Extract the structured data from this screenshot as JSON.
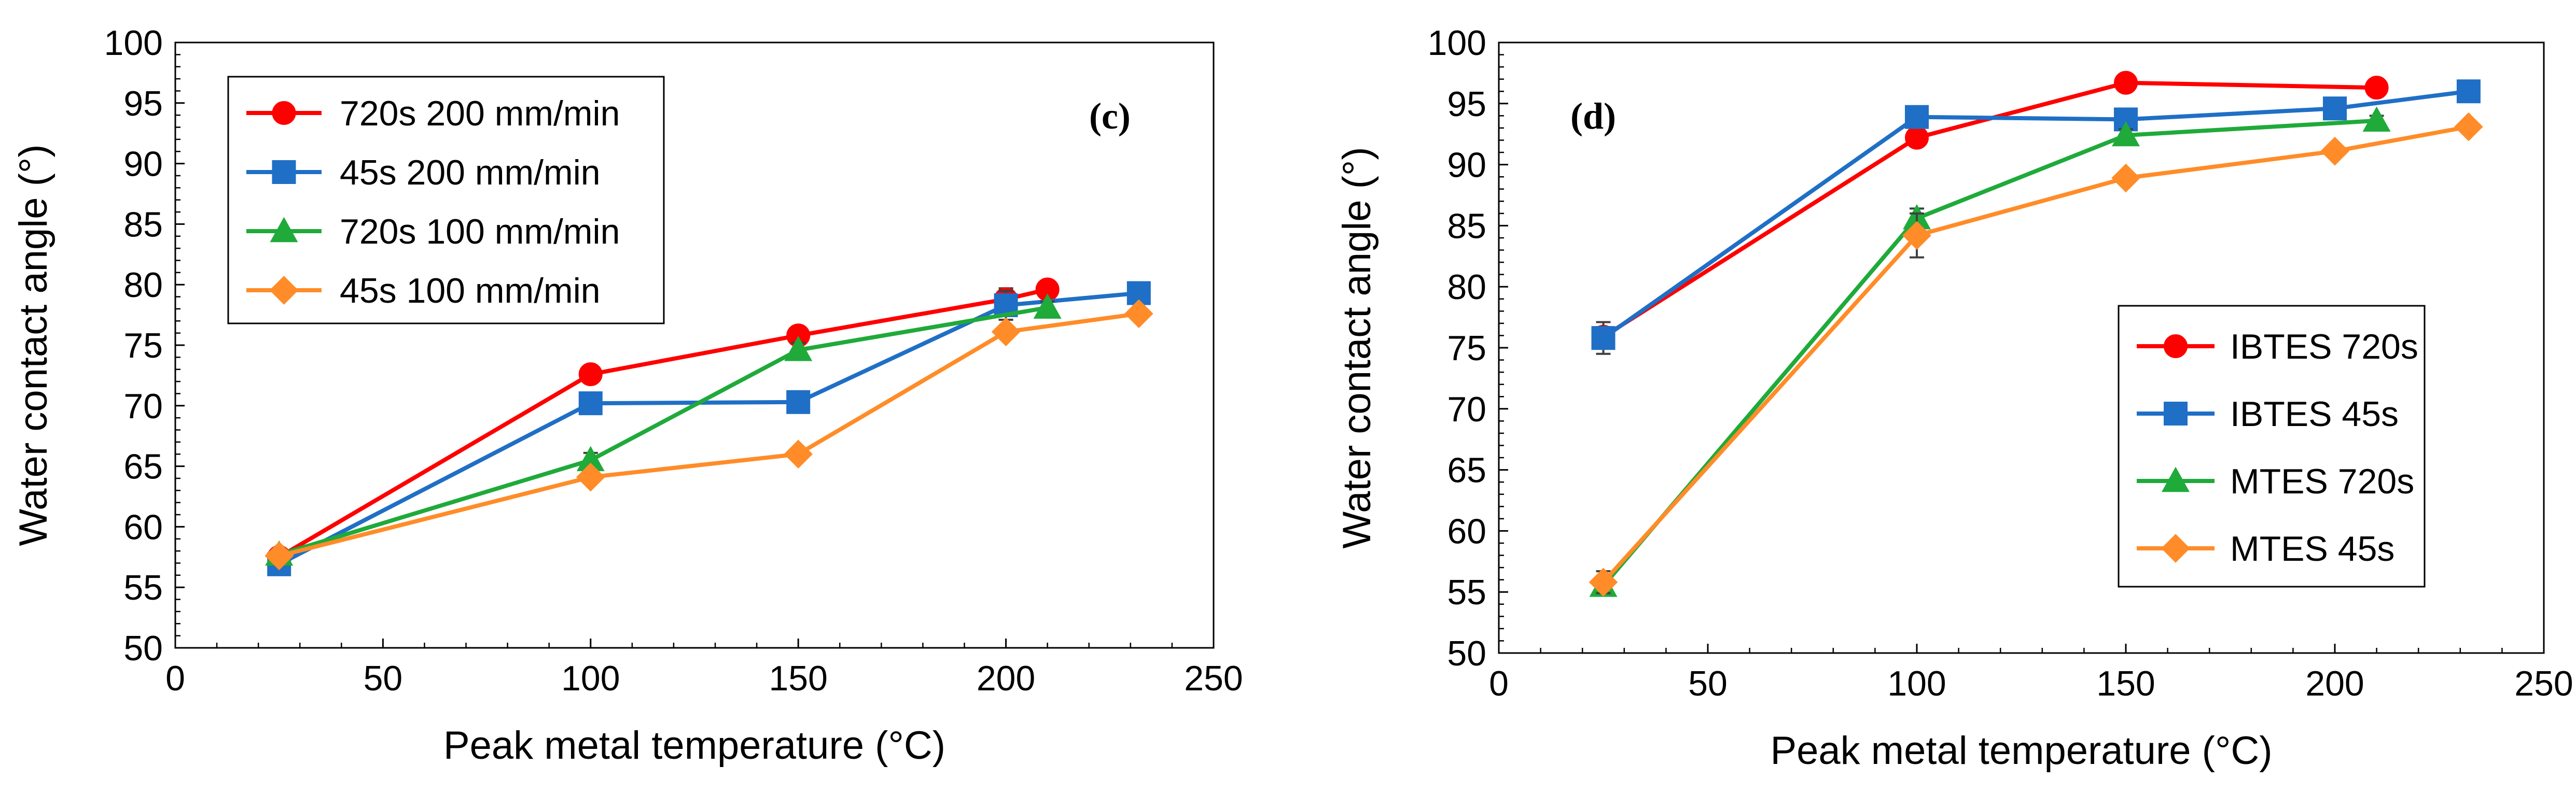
{
  "chart_data": [
    {
      "type": "line",
      "panel_label": "(c)",
      "xlabel": "Peak metal temperature (°C)",
      "ylabel": "Water contact angle (°)",
      "xlim": [
        0,
        250
      ],
      "ylim": [
        50,
        100
      ],
      "x_ticks": [
        0,
        50,
        100,
        150,
        200,
        250
      ],
      "y_ticks": [
        50,
        55,
        60,
        65,
        70,
        75,
        80,
        85,
        90,
        95,
        100
      ],
      "grid": false,
      "legend_position": "top-left",
      "series": [
        {
          "name": "720s 200 mm/min",
          "color": "#ff0000",
          "marker": "circle",
          "x": [
            25,
            100,
            150,
            200,
            210
          ],
          "y": [
            57.5,
            72.6,
            75.8,
            78.8,
            79.6
          ],
          "err": [
            0.5,
            0.6,
            0.7,
            0.9,
            0.4
          ]
        },
        {
          "name": "45s 200 mm/min",
          "color": "#1f6fc6",
          "marker": "square",
          "x": [
            25,
            100,
            150,
            200,
            232
          ],
          "y": [
            56.9,
            70.2,
            70.3,
            78.3,
            79.3
          ],
          "err": [
            0.5,
            0.4,
            0.4,
            1.2,
            0.4
          ]
        },
        {
          "name": "720s 100 mm/min",
          "color": "#1faa3a",
          "marker": "triangle",
          "x": [
            25,
            100,
            150,
            210
          ],
          "y": [
            57.7,
            65.5,
            74.6,
            78.1
          ],
          "err": [
            0.5,
            0.6,
            0.6,
            0.5
          ]
        },
        {
          "name": "45s 100 mm/min",
          "color": "#ff8c28",
          "marker": "diamond",
          "x": [
            25,
            100,
            150,
            200,
            232
          ],
          "y": [
            57.6,
            64.1,
            66.0,
            76.1,
            77.6
          ],
          "err": [
            0.4,
            0.5,
            0.5,
            0.5,
            0.4
          ]
        }
      ]
    },
    {
      "type": "line",
      "panel_label": "(d)",
      "xlabel": "Peak metal temperature (°C)",
      "ylabel": "Water contact angle (°)",
      "xlim": [
        0,
        250
      ],
      "ylim": [
        50,
        100
      ],
      "x_ticks": [
        0,
        50,
        100,
        150,
        200,
        250
      ],
      "y_ticks": [
        50,
        55,
        60,
        65,
        70,
        75,
        80,
        85,
        90,
        95,
        100
      ],
      "grid": false,
      "legend_position": "bottom-right",
      "series": [
        {
          "name": "IBTES 720s",
          "color": "#ff0000",
          "marker": "circle",
          "x": [
            25,
            100,
            150,
            210
          ],
          "y": [
            75.9,
            92.2,
            96.7,
            96.3
          ],
          "err": [
            0.8,
            0.5,
            0.4,
            0.4
          ]
        },
        {
          "name": "IBTES 45s",
          "color": "#1f6fc6",
          "marker": "square",
          "x": [
            25,
            100,
            150,
            200,
            232
          ],
          "y": [
            75.8,
            93.9,
            93.7,
            94.6,
            96.0
          ],
          "err": [
            1.3,
            0.5,
            0.4,
            0.5,
            0.4
          ]
        },
        {
          "name": "MTES 720s",
          "color": "#1faa3a",
          "marker": "triangle",
          "x": [
            25,
            100,
            150,
            210
          ],
          "y": [
            55.5,
            85.6,
            92.4,
            93.6
          ],
          "err": [
            0.6,
            0.8,
            0.5,
            0.4
          ]
        },
        {
          "name": "MTES 45s",
          "color": "#ff8c28",
          "marker": "diamond",
          "x": [
            25,
            100,
            150,
            200,
            232
          ],
          "y": [
            55.8,
            84.2,
            88.9,
            91.1,
            93.1
          ],
          "err": [
            0.9,
            1.8,
            0.5,
            0.5,
            0.4
          ]
        }
      ]
    }
  ]
}
